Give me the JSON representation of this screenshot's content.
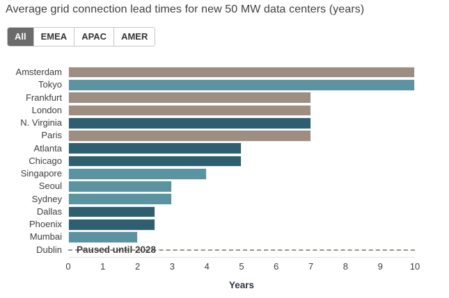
{
  "title": "Average grid connection lead times for new 50 MW data centers (years)",
  "filter_tabs": {
    "items": [
      {
        "label": "All",
        "active": true
      },
      {
        "label": "EMEA",
        "active": false
      },
      {
        "label": "APAC",
        "active": false
      },
      {
        "label": "AMER",
        "active": false
      }
    ]
  },
  "chart_data": {
    "type": "bar",
    "orientation": "horizontal",
    "xlabel": "Years",
    "xlim": [
      0,
      10
    ],
    "x_ticks": [
      0,
      1,
      2,
      3,
      4,
      5,
      6,
      7,
      8,
      9,
      10
    ],
    "grid": false,
    "legend": false,
    "categories": [
      "Amsterdam",
      "Tokyo",
      "Frankfurt",
      "London",
      "N. Virginia",
      "Paris",
      "Atlanta",
      "Chicago",
      "Singapore",
      "Seoul",
      "Sydney",
      "Dallas",
      "Phoenix",
      "Mumbai",
      "Dublin"
    ],
    "values": [
      10,
      10,
      7,
      7,
      7,
      7,
      5,
      5,
      4,
      3,
      3,
      2.5,
      2.5,
      2,
      null
    ],
    "regions": [
      "EMEA",
      "APAC",
      "EMEA",
      "EMEA",
      "AMER",
      "EMEA",
      "AMER",
      "AMER",
      "APAC",
      "APAC",
      "APAC",
      "AMER",
      "AMER",
      "APAC",
      "EMEA"
    ],
    "region_colors": {
      "EMEA": "#9d8e81",
      "APAC": "#5b93a1",
      "AMER": "#2d5f71"
    },
    "annotations": [
      {
        "category": "Dublin",
        "text": "Paused until 2028",
        "style": "dashed-line"
      }
    ]
  },
  "colors": {
    "background": "#ffffff",
    "title_text": "#3f3f3f",
    "tab_active_bg": "#6b6b6b",
    "tab_active_text": "#ffffff",
    "tab_border": "#c6c6c6",
    "dashed_line": "#a0907f",
    "axis_line": "#e4e4e4",
    "axis_label_text": "#2e3640"
  }
}
